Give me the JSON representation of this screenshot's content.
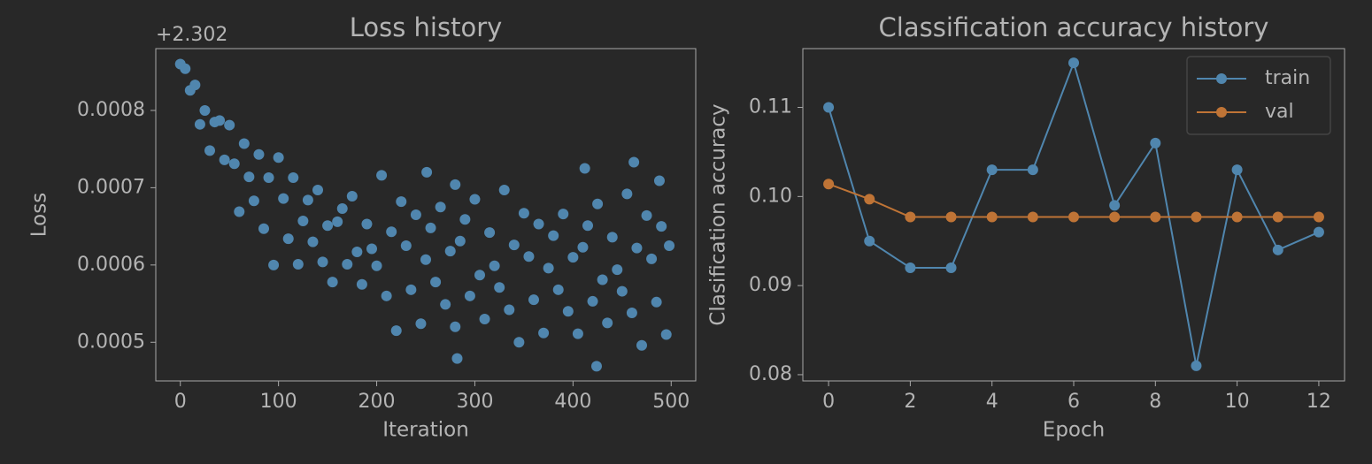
{
  "chart_data": [
    {
      "type": "scatter",
      "title": "Loss history",
      "offset_text": "+2.302",
      "xlabel": "Iteration",
      "ylabel": "Loss",
      "color": "#5086ae",
      "xlim": [
        -25,
        525
      ],
      "ylim": [
        0.00045,
        0.00088
      ],
      "xticks": [
        0,
        100,
        200,
        300,
        400,
        500
      ],
      "yticks": [
        0.0005,
        0.0006,
        0.0007,
        0.0008
      ],
      "x": [
        0,
        5,
        10,
        15,
        20,
        25,
        30,
        35,
        40,
        45,
        50,
        55,
        60,
        65,
        70,
        75,
        80,
        85,
        90,
        95,
        100,
        105,
        110,
        115,
        120,
        125,
        130,
        135,
        140,
        145,
        150,
        155,
        160,
        165,
        170,
        175,
        180,
        185,
        190,
        195,
        200,
        205,
        210,
        215,
        220,
        225,
        230,
        235,
        240,
        245,
        250,
        255,
        260,
        265,
        270,
        275,
        280,
        285,
        290,
        295,
        300,
        305,
        310,
        315,
        320,
        325,
        330,
        335,
        340,
        345,
        350,
        355,
        360,
        365,
        370,
        375,
        380,
        385,
        390,
        395,
        400,
        405,
        410,
        415,
        420,
        425,
        430,
        435,
        440,
        445,
        450,
        455,
        460,
        465,
        470,
        475,
        480,
        485,
        490,
        495,
        412,
        462,
        424,
        282,
        251,
        488,
        498,
        280
      ],
      "values": [
        0.00086,
        0.000854,
        0.000826,
        0.000833,
        0.000782,
        0.0008,
        0.000748,
        0.000785,
        0.000787,
        0.000736,
        0.000781,
        0.000731,
        0.000669,
        0.000757,
        0.000714,
        0.000683,
        0.000743,
        0.000647,
        0.000713,
        0.0006,
        0.000739,
        0.000686,
        0.000634,
        0.000713,
        0.000601,
        0.000657,
        0.000684,
        0.00063,
        0.000697,
        0.000604,
        0.000651,
        0.000578,
        0.000656,
        0.000673,
        0.000601,
        0.000689,
        0.000617,
        0.000575,
        0.000653,
        0.000621,
        0.000599,
        0.000716,
        0.00056,
        0.000643,
        0.000515,
        0.000682,
        0.000625,
        0.000568,
        0.000665,
        0.000524,
        0.000607,
        0.000648,
        0.000578,
        0.000675,
        0.000549,
        0.000618,
        0.00052,
        0.000631,
        0.000659,
        0.00056,
        0.000685,
        0.000587,
        0.00053,
        0.000642,
        0.000599,
        0.000571,
        0.000697,
        0.000542,
        0.000626,
        0.0005,
        0.000667,
        0.000611,
        0.000555,
        0.000653,
        0.000512,
        0.000596,
        0.000638,
        0.000568,
        0.000666,
        0.00054,
        0.00061,
        0.000511,
        0.000623,
        0.000651,
        0.000553,
        0.000679,
        0.000581,
        0.000525,
        0.000636,
        0.000594,
        0.000566,
        0.000692,
        0.000538,
        0.000622,
        0.000496,
        0.000664,
        0.000608,
        0.000552,
        0.00065,
        0.00051,
        0.000725,
        0.000733,
        0.000469,
        0.000479,
        0.00072,
        0.000709,
        0.000625,
        0.000704
      ]
    },
    {
      "type": "line",
      "title": "Classification accuracy history",
      "xlabel": "Epoch",
      "ylabel": "Clasification accuracy",
      "legend": "upper right",
      "xlim": [
        -0.63,
        12.63
      ],
      "ylim": [
        0.0793,
        0.1166
      ],
      "xticks": [
        0,
        2,
        4,
        6,
        8,
        10,
        12
      ],
      "yticks": [
        0.08,
        0.09,
        {
          "value": 0.1,
          "label": "0.10"
        },
        0.11
      ],
      "x": [
        0,
        1,
        2,
        3,
        4,
        5,
        6,
        7,
        8,
        9,
        10,
        11,
        12
      ],
      "series": [
        {
          "name": "train",
          "color": "#5086ae",
          "values": [
            0.11,
            0.095,
            0.092,
            0.092,
            0.103,
            0.103,
            0.115,
            0.099,
            0.106,
            0.081,
            0.103,
            0.094,
            0.096
          ]
        },
        {
          "name": "val",
          "color": "#bf7436",
          "values": [
            0.1014,
            0.0997,
            0.0977,
            0.0977,
            0.0977,
            0.0977,
            0.0977,
            0.0977,
            0.0977,
            0.0977,
            0.0977,
            0.0977,
            0.0977
          ]
        }
      ]
    }
  ]
}
